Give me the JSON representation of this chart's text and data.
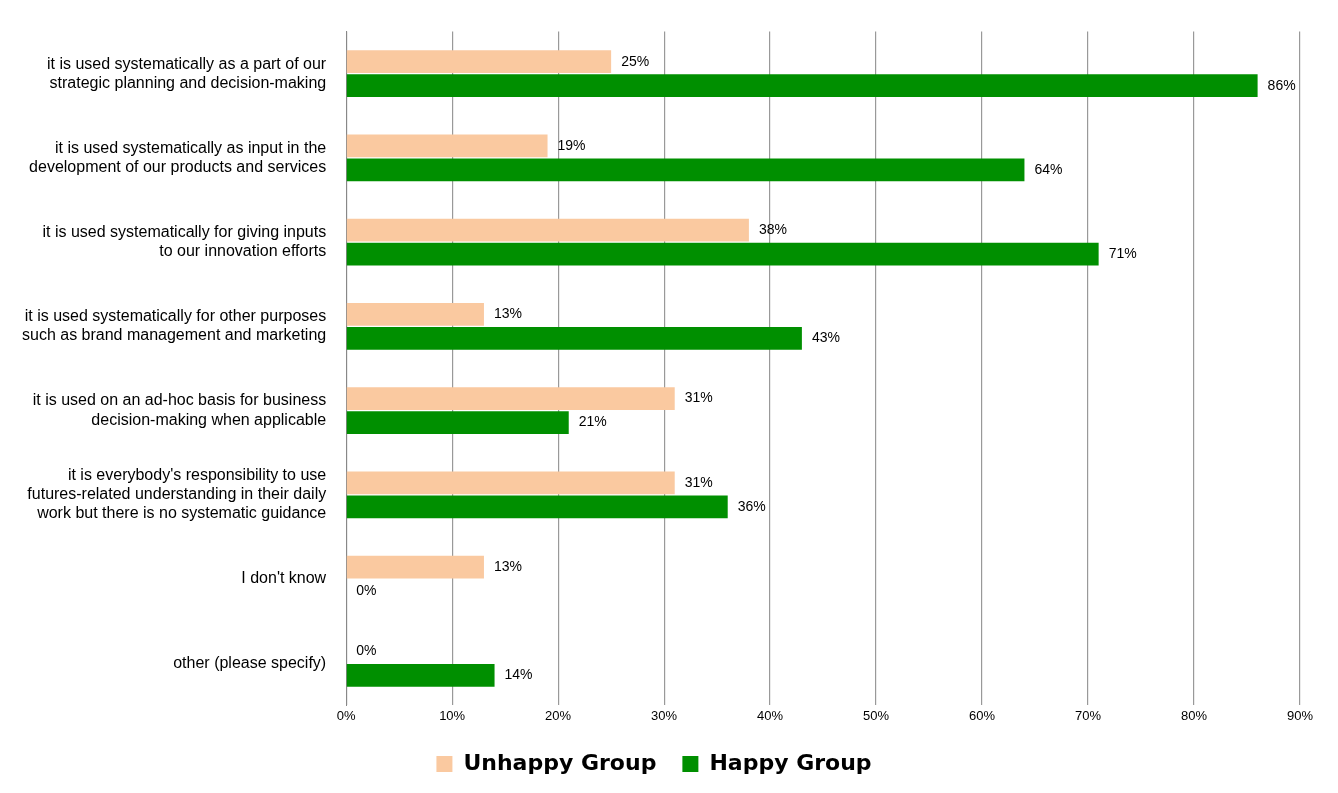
{
  "chart_data": {
    "type": "bar",
    "orientation": "horizontal",
    "categories": [
      "it is used systematically as a part of our strategic planning and decision-making",
      "it is used systematically as input in the development of our products and services",
      "it is used systematically for giving inputs to our innovation efforts",
      "it is used systematically for other purposes such as brand management and marketing",
      "it is used on an ad-hoc basis for business decision-making when applicable",
      "it is everybody's responsibility to use futures-related understanding in their daily work but there is no systematic guidance",
      "I don't know",
      "other (please specify)"
    ],
    "series": [
      {
        "name": "Unhappy Group",
        "color": "#fac9a0",
        "values": [
          25,
          19,
          38,
          13,
          31,
          31,
          13,
          0
        ],
        "value_labels": [
          "25%",
          "19%",
          "38%",
          "13%",
          "31%",
          "31%",
          "13%",
          "0%"
        ]
      },
      {
        "name": "Happy Group",
        "color": "#008f00",
        "values": [
          86,
          64,
          71,
          43,
          21,
          36,
          0,
          14
        ],
        "value_labels": [
          "86%",
          "64%",
          "71%",
          "43%",
          "21%",
          "36%",
          "0%",
          "14%"
        ]
      }
    ],
    "xlim": [
      0,
      90
    ],
    "xticks": [
      {
        "value": 0,
        "label": "0%"
      },
      {
        "value": 10,
        "label": "10%"
      },
      {
        "value": 20,
        "label": "20%"
      },
      {
        "value": 30,
        "label": "30%"
      },
      {
        "value": 40,
        "label": "40%"
      },
      {
        "value": 50,
        "label": "50%"
      },
      {
        "value": 60,
        "label": "60%"
      },
      {
        "value": 70,
        "label": "70%"
      },
      {
        "value": 80,
        "label": "80%"
      },
      {
        "value": 90,
        "label": "90%"
      }
    ],
    "grid": "x",
    "legend": "bottom"
  }
}
